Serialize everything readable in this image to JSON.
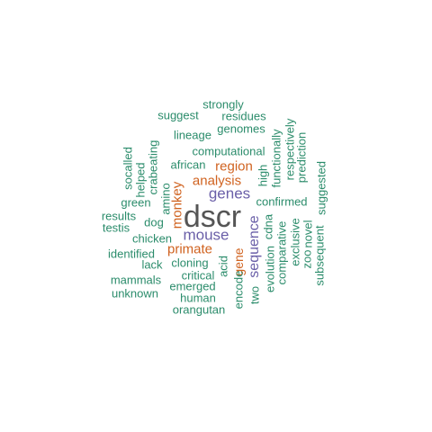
{
  "palette": {
    "gray": "#555555",
    "purple": "#6a5fa8",
    "orange": "#d0621f",
    "teal": "#2b8c6b"
  },
  "words": [
    {
      "text": "dscr",
      "color": "gray",
      "weight": 1.0
    },
    {
      "text": "genes",
      "color": "purple",
      "weight": 0.55
    },
    {
      "text": "mouse",
      "color": "purple",
      "weight": 0.55
    },
    {
      "text": "sequence",
      "color": "purple",
      "weight": 0.5
    },
    {
      "text": "region",
      "color": "orange",
      "weight": 0.5
    },
    {
      "text": "analysis",
      "color": "orange",
      "weight": 0.5
    },
    {
      "text": "monkey",
      "color": "orange",
      "weight": 0.5
    },
    {
      "text": "primate",
      "color": "orange",
      "weight": 0.5
    },
    {
      "text": "gene",
      "color": "orange",
      "weight": 0.5
    },
    {
      "text": "strongly",
      "color": "teal",
      "weight": 0.3
    },
    {
      "text": "suggest",
      "color": "teal",
      "weight": 0.3
    },
    {
      "text": "residues",
      "color": "teal",
      "weight": 0.3
    },
    {
      "text": "genomes",
      "color": "teal",
      "weight": 0.3
    },
    {
      "text": "lineage",
      "color": "teal",
      "weight": 0.3
    },
    {
      "text": "computational",
      "color": "teal",
      "weight": 0.3
    },
    {
      "text": "african",
      "color": "teal",
      "weight": 0.3
    },
    {
      "text": "socalled",
      "color": "teal",
      "weight": 0.3
    },
    {
      "text": "helped",
      "color": "teal",
      "weight": 0.3
    },
    {
      "text": "crabeating",
      "color": "teal",
      "weight": 0.3
    },
    {
      "text": "amino",
      "color": "teal",
      "weight": 0.3
    },
    {
      "text": "green",
      "color": "teal",
      "weight": 0.3
    },
    {
      "text": "results",
      "color": "teal",
      "weight": 0.3
    },
    {
      "text": "testis",
      "color": "teal",
      "weight": 0.3
    },
    {
      "text": "dog",
      "color": "teal",
      "weight": 0.3
    },
    {
      "text": "chicken",
      "color": "teal",
      "weight": 0.3
    },
    {
      "text": "identified",
      "color": "teal",
      "weight": 0.3
    },
    {
      "text": "lack",
      "color": "teal",
      "weight": 0.3
    },
    {
      "text": "cloning",
      "color": "teal",
      "weight": 0.3
    },
    {
      "text": "critical",
      "color": "teal",
      "weight": 0.3
    },
    {
      "text": "mammals",
      "color": "teal",
      "weight": 0.3
    },
    {
      "text": "emerged",
      "color": "teal",
      "weight": 0.3
    },
    {
      "text": "unknown",
      "color": "teal",
      "weight": 0.3
    },
    {
      "text": "human",
      "color": "teal",
      "weight": 0.3
    },
    {
      "text": "orangutan",
      "color": "teal",
      "weight": 0.3
    },
    {
      "text": "acid",
      "color": "teal",
      "weight": 0.3
    },
    {
      "text": "encode",
      "color": "teal",
      "weight": 0.3
    },
    {
      "text": "two",
      "color": "teal",
      "weight": 0.3
    },
    {
      "text": "high",
      "color": "teal",
      "weight": 0.3
    },
    {
      "text": "functionally",
      "color": "teal",
      "weight": 0.3
    },
    {
      "text": "respectively",
      "color": "teal",
      "weight": 0.3
    },
    {
      "text": "prediction",
      "color": "teal",
      "weight": 0.3
    },
    {
      "text": "confirmed",
      "color": "teal",
      "weight": 0.3
    },
    {
      "text": "cdna",
      "color": "teal",
      "weight": 0.3
    },
    {
      "text": "evolution",
      "color": "teal",
      "weight": 0.3
    },
    {
      "text": "comparative",
      "color": "teal",
      "weight": 0.3
    },
    {
      "text": "exclusive",
      "color": "teal",
      "weight": 0.3
    },
    {
      "text": "novel",
      "color": "teal",
      "weight": 0.3
    },
    {
      "text": "zoo",
      "color": "teal",
      "weight": 0.3
    },
    {
      "text": "suggested",
      "color": "teal",
      "weight": 0.3
    },
    {
      "text": "subsequent",
      "color": "teal",
      "weight": 0.3
    }
  ]
}
